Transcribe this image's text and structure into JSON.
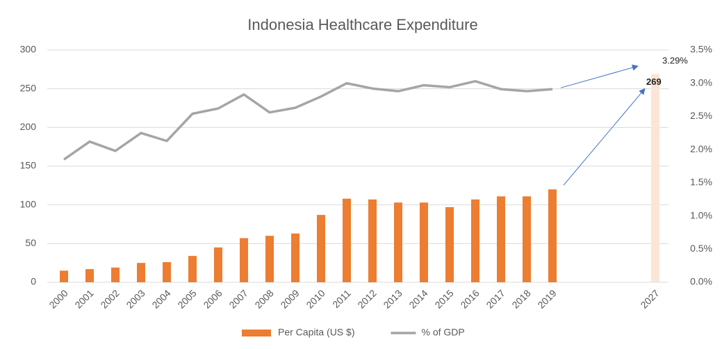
{
  "chart_data": {
    "type": "bar",
    "title": "Indonesia Healthcare Expenditure",
    "categories": [
      "2000",
      "2001",
      "2002",
      "2003",
      "2004",
      "2005",
      "2006",
      "2007",
      "2008",
      "2009",
      "2010",
      "2011",
      "2012",
      "2013",
      "2014",
      "2015",
      "2016",
      "2017",
      "2018",
      "2019",
      null,
      null,
      null,
      "2027"
    ],
    "series": [
      {
        "name": "Per Capita (US $)",
        "type": "bar",
        "color": "#ed7d31",
        "colors": [
          "#ed7d31",
          "#ed7d31",
          "#ed7d31",
          "#ed7d31",
          "#ed7d31",
          "#ed7d31",
          "#ed7d31",
          "#ed7d31",
          "#ed7d31",
          "#ed7d31",
          "#ed7d31",
          "#ed7d31",
          "#ed7d31",
          "#ed7d31",
          "#ed7d31",
          "#ed7d31",
          "#ed7d31",
          "#ed7d31",
          "#ed7d31",
          "#ed7d31",
          null,
          null,
          null,
          "#fbe5d6"
        ],
        "values": [
          15,
          17,
          19,
          25,
          26,
          34,
          45,
          57,
          60,
          63,
          87,
          108,
          107,
          103,
          103,
          97,
          107,
          111,
          111,
          120,
          null,
          null,
          null,
          269
        ],
        "value_labels": [
          null,
          null,
          null,
          null,
          null,
          null,
          null,
          null,
          null,
          null,
          null,
          null,
          null,
          null,
          null,
          null,
          null,
          null,
          null,
          null,
          null,
          null,
          null,
          "269"
        ]
      },
      {
        "name": "% of GDP",
        "type": "line",
        "axis": "y2",
        "color": "#a5a5a5",
        "values": [
          1.85,
          2.12,
          1.98,
          2.25,
          2.13,
          2.54,
          2.62,
          2.83,
          2.56,
          2.63,
          2.8,
          3.0,
          2.92,
          2.88,
          2.97,
          2.94,
          3.03,
          2.91,
          2.88,
          2.91,
          null,
          null,
          null,
          null
        ]
      }
    ],
    "annotations": [
      {
        "text": "3.29%",
        "value": 3.29,
        "axis": "y2"
      }
    ],
    "arrow_color": "#4472c4",
    "ylim": [
      0,
      300
    ],
    "yticks": [
      0,
      50,
      100,
      150,
      200,
      250,
      300
    ],
    "y2lim": [
      0,
      3.5
    ],
    "y2ticks": [
      {
        "value": 0,
        "label": "0.0%"
      },
      {
        "value": 0.5,
        "label": "0.5%"
      },
      {
        "value": 1,
        "label": "1.0%"
      },
      {
        "value": 1.5,
        "label": "1.5%"
      },
      {
        "value": 2,
        "label": "2.0%"
      },
      {
        "value": 2.5,
        "label": "2.5%"
      },
      {
        "value": 3,
        "label": "3.0%"
      },
      {
        "value": 3.5,
        "label": "3.5%"
      }
    ],
    "grid": true,
    "legend": "bottom"
  }
}
